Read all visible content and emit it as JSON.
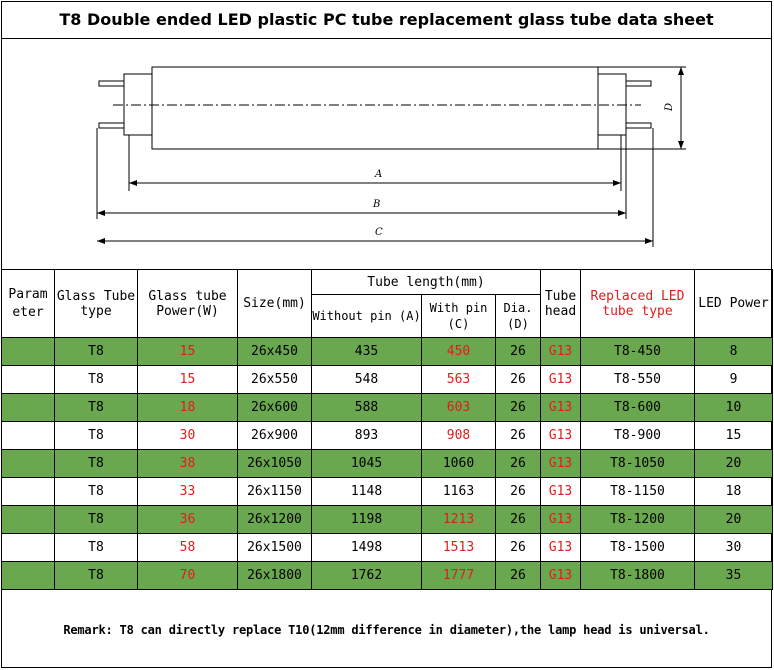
{
  "title": "T8 Double ended LED plastic PC tube replacement glass tube data sheet",
  "drawing": {
    "dim_a": "A",
    "dim_b": "B",
    "dim_c": "C",
    "dim_d": "D",
    "icon": "tube-dimension-drawing"
  },
  "table": {
    "headers": {
      "param": "Param eter",
      "glass_type": "Glass Tube type",
      "glass_power": "Glass tube Power(W)",
      "size": "Size(mm)",
      "tube_length": "Tube length(mm)",
      "without_pin": "Without pin (A)",
      "with_pin": "With pin (C)",
      "dia": "Dia. (D)",
      "tube_head": "Tube head",
      "replaced": "Replaced LED tube type",
      "led_power": "LED Power"
    },
    "rows": [
      {
        "type": "T8",
        "power": "15",
        "size": "26x450",
        "without": "435",
        "with": "450",
        "dia": "26",
        "head": "G13",
        "replaced": "T8-450",
        "led": "8"
      },
      {
        "type": "T8",
        "power": "15",
        "size": "26x550",
        "without": "548",
        "with": "563",
        "dia": "26",
        "head": "G13",
        "replaced": "T8-550",
        "led": "9"
      },
      {
        "type": "T8",
        "power": "18",
        "size": "26x600",
        "without": "588",
        "with": "603",
        "dia": "26",
        "head": "G13",
        "replaced": "T8-600",
        "led": "10"
      },
      {
        "type": "T8",
        "power": "30",
        "size": "26x900",
        "without": "893",
        "with": "908",
        "dia": "26",
        "head": "G13",
        "replaced": "T8-900",
        "led": "15"
      },
      {
        "type": "T8",
        "power": "38",
        "size": "26x1050",
        "without": "1045",
        "with": "1060",
        "dia": "26",
        "head": "G13",
        "replaced": "T8-1050",
        "led": "20"
      },
      {
        "type": "T8",
        "power": "33",
        "size": "26x1150",
        "without": "1148",
        "with": "1163",
        "dia": "26",
        "head": "G13",
        "replaced": "T8-1150",
        "led": "18"
      },
      {
        "type": "T8",
        "power": "36",
        "size": "26x1200",
        "without": "1198",
        "with": "1213",
        "dia": "26",
        "head": "G13",
        "replaced": "T8-1200",
        "led": "20"
      },
      {
        "type": "T8",
        "power": "58",
        "size": "26x1500",
        "without": "1498",
        "with": "1513",
        "dia": "26",
        "head": "G13",
        "replaced": "T8-1500",
        "led": "30"
      },
      {
        "type": "T8",
        "power": "70",
        "size": "26x1800",
        "without": "1762",
        "with": "1777",
        "dia": "26",
        "head": "G13",
        "replaced": "T8-1800",
        "led": "35"
      }
    ]
  },
  "remark": "Remark: T8 can directly replace T10(12mm difference in diameter),the lamp head is universal.",
  "colors": {
    "row_highlight": "#6aa84f",
    "accent_text": "#e31b1b"
  }
}
